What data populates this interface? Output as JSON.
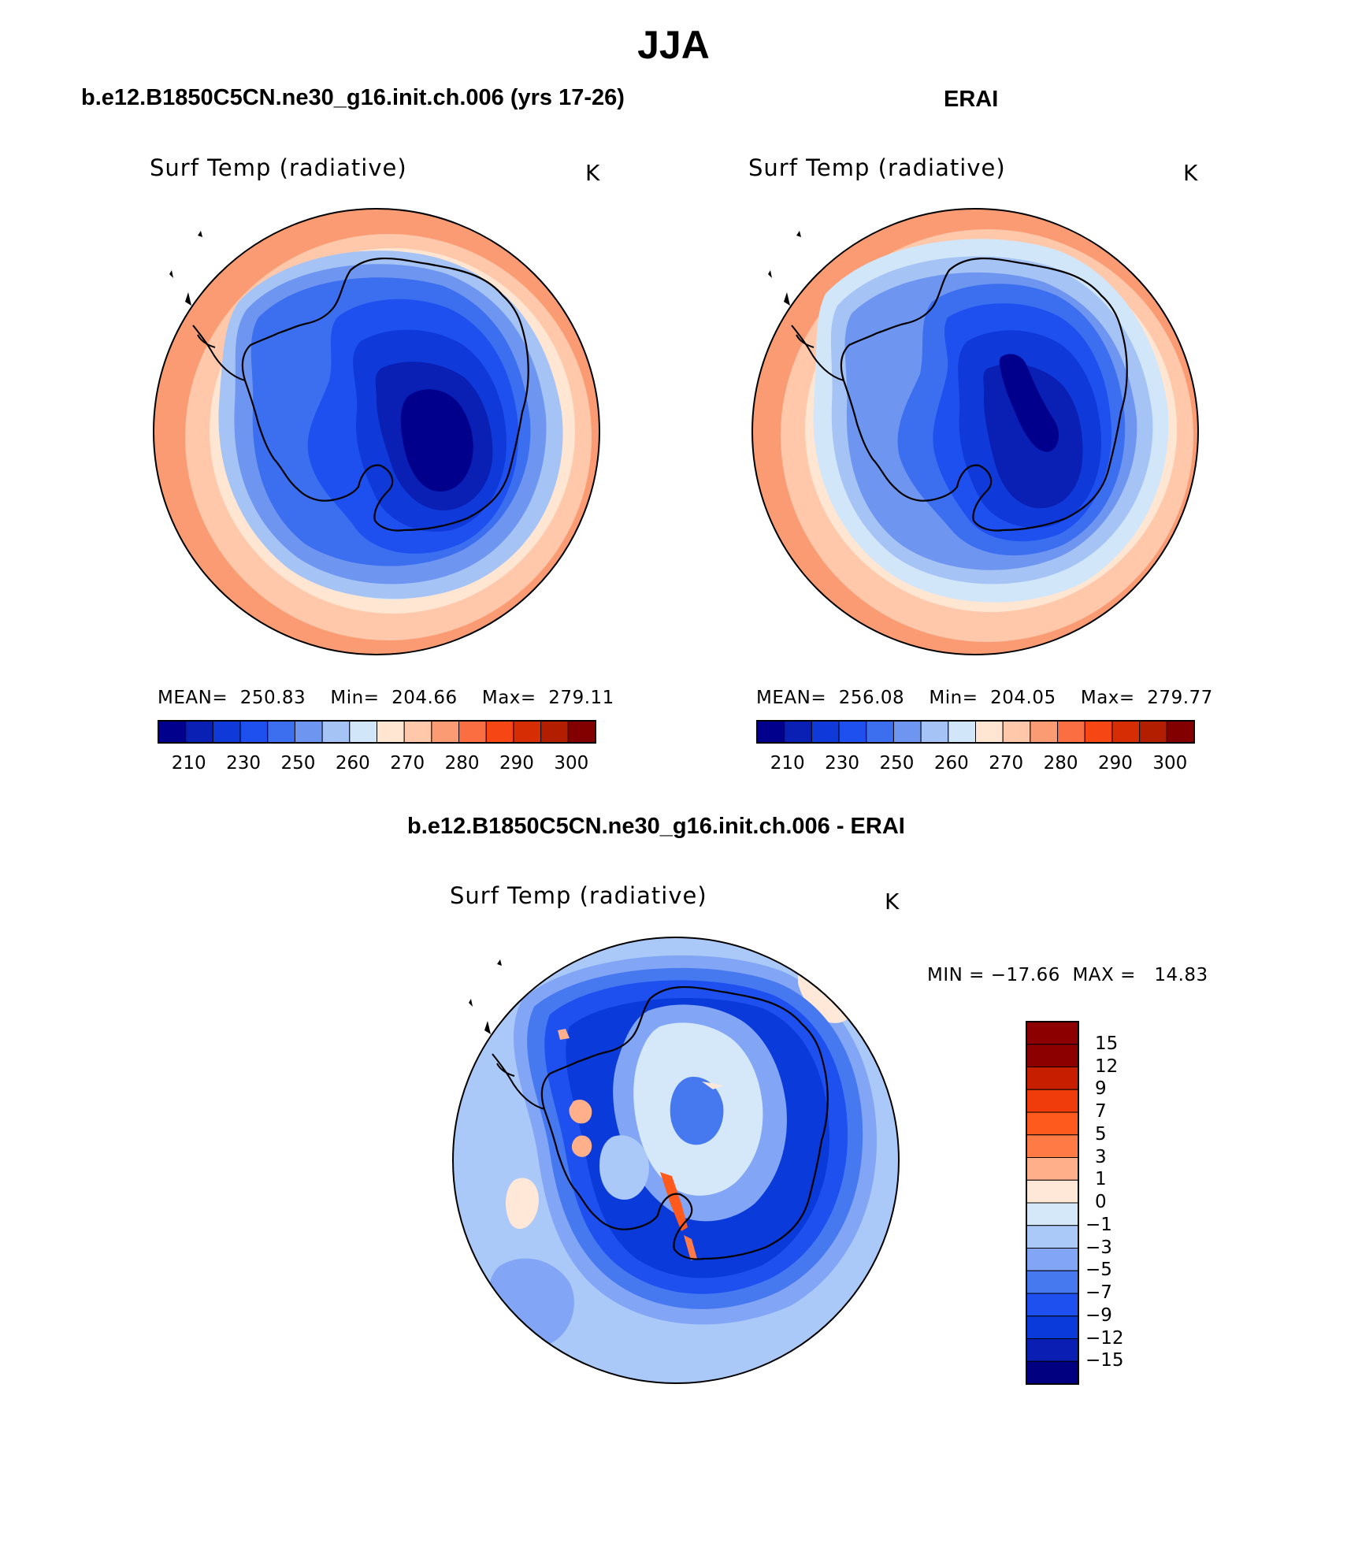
{
  "page": {
    "title": "JJA"
  },
  "colors": {
    "abs_palette": [
      "#00008c",
      "#0a1fb4",
      "#0f3ad9",
      "#1e50f0",
      "#3c6ef0",
      "#6e96f0",
      "#a5c3f5",
      "#d2e6fa",
      "#ffe6d2",
      "#ffc8aa",
      "#fa9b73",
      "#fa6e41",
      "#f54614",
      "#d72d05",
      "#b41e00",
      "#820000"
    ],
    "diff_palette": [
      "#000080",
      "#0a1eb4",
      "#0a3ad9",
      "#1e50f0",
      "#4678f0",
      "#82a5f5",
      "#aac8f8",
      "#d5e8fa",
      "#ffe8d8",
      "#ffb08a",
      "#ff7a45",
      "#ff5a1e",
      "#f03c0a",
      "#c81e00",
      "#8c0000"
    ]
  },
  "panels": [
    {
      "id": "model",
      "title": "b.e12.B1850C5CN.ne30_g16.init.ch.006 (yrs 17-26)",
      "variable": "Surf Temp (radiative)",
      "units": "K",
      "stats": "MEAN=  250.83    Min=  204.66    Max=  279.11",
      "colorbar_ticks": [
        "210",
        "230",
        "250",
        "260",
        "270",
        "280",
        "290",
        "300"
      ]
    },
    {
      "id": "obs",
      "title": "ERAI",
      "variable": "Surf Temp (radiative)",
      "units": "K",
      "stats": "MEAN=  256.08    Min=  204.05    Max=  279.77",
      "colorbar_ticks": [
        "210",
        "230",
        "250",
        "260",
        "270",
        "280",
        "290",
        "300"
      ]
    },
    {
      "id": "diff",
      "title": "b.e12.B1850C5CN.ne30_g16.init.ch.006 - ERAI",
      "variable": "Surf Temp (radiative)",
      "units": "K",
      "stats": "MIN = −17.66  MAX =   14.83",
      "colorbar_ticks": [
        "15",
        "12",
        "9",
        "7",
        "5",
        "3",
        "1",
        "0",
        "−1",
        "−3",
        "−5",
        "−7",
        "−9",
        "−12",
        "−15"
      ]
    }
  ]
}
